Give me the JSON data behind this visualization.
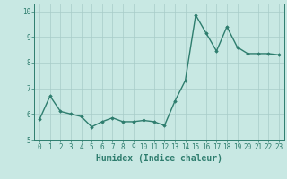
{
  "x": [
    0,
    1,
    2,
    3,
    4,
    5,
    6,
    7,
    8,
    9,
    10,
    11,
    12,
    13,
    14,
    15,
    16,
    17,
    18,
    19,
    20,
    21,
    22,
    23
  ],
  "y": [
    5.8,
    6.7,
    6.1,
    6.0,
    5.9,
    5.5,
    5.7,
    5.85,
    5.7,
    5.7,
    5.75,
    5.7,
    5.55,
    6.5,
    7.3,
    9.85,
    9.15,
    8.45,
    9.4,
    8.6,
    8.35,
    8.35,
    8.35,
    8.3
  ],
  "line_color": "#2e7d6e",
  "marker": "D",
  "marker_size": 1.8,
  "linewidth": 1.0,
  "xlabel": "Humidex (Indice chaleur)",
  "xlabel_fontsize": 7,
  "xlim": [
    -0.5,
    23.5
  ],
  "ylim": [
    5.0,
    10.3
  ],
  "yticks": [
    5,
    6,
    7,
    8,
    9,
    10
  ],
  "xticks": [
    0,
    1,
    2,
    3,
    4,
    5,
    6,
    7,
    8,
    9,
    10,
    11,
    12,
    13,
    14,
    15,
    16,
    17,
    18,
    19,
    20,
    21,
    22,
    23
  ],
  "bg_color": "#c8e8e3",
  "grid_color": "#a8ccc8",
  "tick_fontsize": 5.5,
  "axes_color": "#2e7d6e",
  "fig_width": 3.2,
  "fig_height": 2.0,
  "dpi": 100
}
